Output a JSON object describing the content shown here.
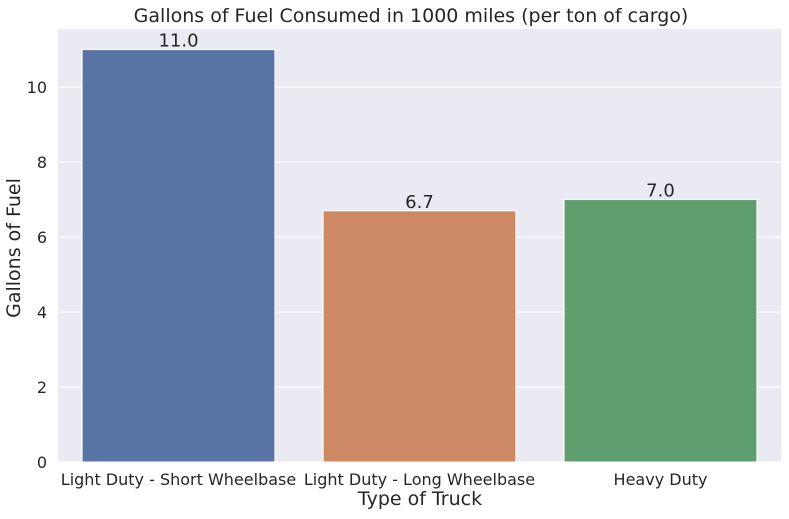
{
  "chart_data": {
    "type": "bar",
    "title": "Gallons of Fuel Consumed in 1000 miles (per ton of cargo)",
    "xlabel": "Type of Truck",
    "ylabel": "Gallons of Fuel",
    "categories": [
      "Light Duty - Short Wheelbase",
      "Light Duty - Long Wheelbase",
      "Heavy Duty"
    ],
    "values": [
      11.0,
      6.7,
      7.0
    ],
    "value_labels": [
      "11.0",
      "6.7",
      "7.0"
    ],
    "colors": [
      "#5874a5",
      "#cd8963",
      "#5f9f6e"
    ],
    "ylim": [
      0,
      11.55
    ],
    "yticks": [
      0,
      2,
      4,
      6,
      8,
      10
    ],
    "ytick_labels": [
      "0",
      "2",
      "4",
      "6",
      "8",
      "10"
    ],
    "grid": true,
    "background": "#eaeaf2",
    "gridline_color": "#ffffff"
  }
}
